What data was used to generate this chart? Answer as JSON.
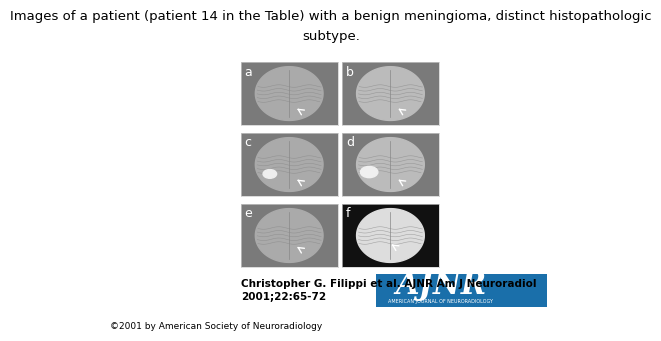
{
  "title_line1": "Images of a patient (patient 14 in the Table) with a benign meningioma, distinct histopathologic",
  "title_line2": "subtype.",
  "panel_labels": [
    "a",
    "b",
    "c",
    "d",
    "e",
    "f"
  ],
  "citation_line1": "Christopher G. Filippi et al. AJNR Am J Neuroradiol",
  "citation_line2": "2001;22:65-72",
  "copyright": "©2001 by American Society of Neuroradiology",
  "ajnr_logo_color": "#1a6faa",
  "bg_color": "#ffffff",
  "grid_rows": 3,
  "grid_cols": 2,
  "title_fontsize": 9.5,
  "label_fontsize": 9,
  "citation_fontsize": 7.5,
  "copyright_fontsize": 6.5,
  "logo_text": "AJNR",
  "logo_subtext": "AMERICAN JOURNAL OF NEURORADIOLOGY"
}
